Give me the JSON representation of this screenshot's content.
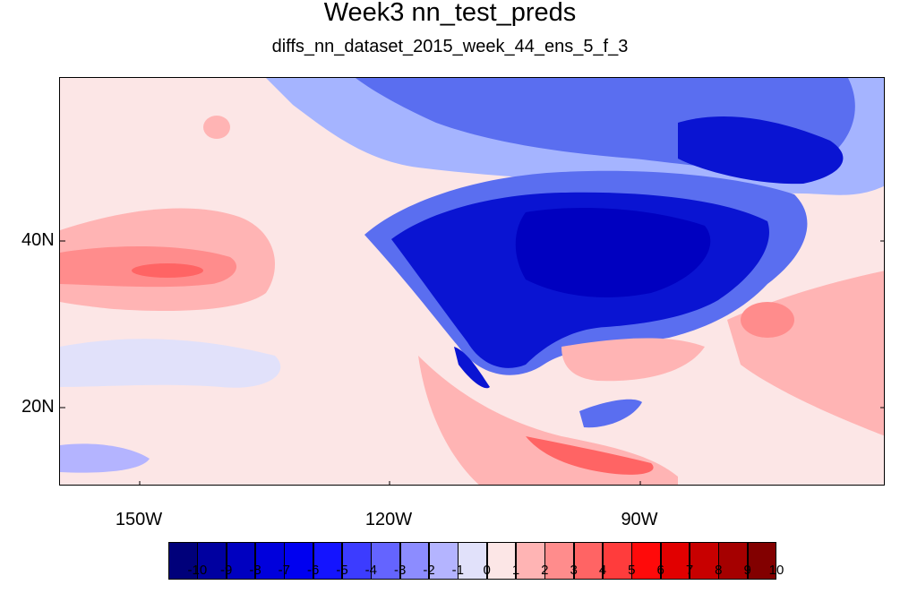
{
  "title": "Week3 nn_test_preds",
  "subtitle": "diffs_nn_dataset_2015_week_44_ens_5_f_3",
  "axes": {
    "lat_labels": [
      "40N",
      "20N"
    ],
    "lon_labels": [
      "150W",
      "120W",
      "90W"
    ]
  },
  "colorbar": {
    "labels": [
      "-10",
      "-9",
      "-8",
      "-7",
      "-6",
      "-5",
      "-4",
      "-3",
      "-2",
      "-1",
      "0",
      "1",
      "2",
      "3",
      "4",
      "5",
      "6",
      "7",
      "8",
      "9",
      "10"
    ],
    "colors": [
      "#00007a",
      "#0000a0",
      "#0000c0",
      "#0000dc",
      "#0000f0",
      "#1414ff",
      "#3c3cff",
      "#6464ff",
      "#8c8cff",
      "#b4b4ff",
      "#e1e1fa",
      "#fce6e6",
      "#ffb4b4",
      "#ff8c8c",
      "#ff6464",
      "#ff3c3c",
      "#ff0a0a",
      "#e10000",
      "#c80000",
      "#a50000",
      "#820000"
    ]
  },
  "map_palette": {
    "ocean_base": "#fce6e6",
    "strong_negative": "#0a14d2",
    "moderate_negative": "#5a6ef0",
    "weak_negative": "#a5b4ff",
    "weak_positive": "#ffb4b4",
    "moderate_positive": "#ff7878",
    "strong_positive": "#ff3232"
  }
}
